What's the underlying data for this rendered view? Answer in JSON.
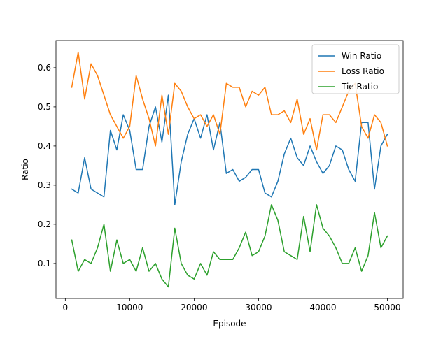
{
  "chart_data": {
    "type": "line",
    "title": "",
    "xlabel": "Episode",
    "ylabel": "Ratio",
    "xlim": [
      -1450,
      52450
    ],
    "ylim": [
      0.0105,
      0.6695
    ],
    "xticks": [
      0,
      10000,
      20000,
      30000,
      40000,
      50000
    ],
    "yticks": [
      0.1,
      0.2,
      0.3,
      0.4,
      0.5,
      0.6
    ],
    "xtick_labels": [
      "0",
      "10000",
      "20000",
      "30000",
      "40000",
      "50000"
    ],
    "ytick_labels": [
      "0.1",
      "0.2",
      "0.3",
      "0.4",
      "0.5",
      "0.6"
    ],
    "grid": false,
    "legend_position": "top-right",
    "x": [
      1000,
      2000,
      3000,
      4000,
      5000,
      6000,
      7000,
      8000,
      9000,
      10000,
      11000,
      12000,
      13000,
      14000,
      15000,
      16000,
      17000,
      18000,
      19000,
      20000,
      21000,
      22000,
      23000,
      24000,
      25000,
      26000,
      27000,
      28000,
      29000,
      30000,
      31000,
      32000,
      33000,
      34000,
      35000,
      36000,
      37000,
      38000,
      39000,
      40000,
      41000,
      42000,
      43000,
      44000,
      45000,
      46000,
      47000,
      48000,
      49000,
      50000
    ],
    "series": [
      {
        "name": "Win Ratio",
        "color": "#1f77b4",
        "values": [
          0.29,
          0.28,
          0.37,
          0.29,
          0.28,
          0.27,
          0.44,
          0.39,
          0.48,
          0.44,
          0.34,
          0.34,
          0.45,
          0.5,
          0.41,
          0.53,
          0.25,
          0.36,
          0.43,
          0.47,
          0.42,
          0.48,
          0.39,
          0.46,
          0.33,
          0.34,
          0.31,
          0.32,
          0.34,
          0.34,
          0.28,
          0.27,
          0.31,
          0.38,
          0.42,
          0.37,
          0.35,
          0.4,
          0.36,
          0.33,
          0.35,
          0.4,
          0.39,
          0.34,
          0.31,
          0.46,
          0.46,
          0.29,
          0.4,
          0.43
        ]
      },
      {
        "name": "Loss Ratio",
        "color": "#ff7f0e",
        "values": [
          0.55,
          0.64,
          0.52,
          0.61,
          0.58,
          0.53,
          0.48,
          0.45,
          0.42,
          0.45,
          0.58,
          0.52,
          0.47,
          0.4,
          0.53,
          0.43,
          0.56,
          0.54,
          0.5,
          0.47,
          0.48,
          0.45,
          0.48,
          0.43,
          0.56,
          0.55,
          0.55,
          0.5,
          0.54,
          0.53,
          0.55,
          0.48,
          0.48,
          0.49,
          0.46,
          0.52,
          0.43,
          0.47,
          0.39,
          0.48,
          0.48,
          0.46,
          0.5,
          0.54,
          0.56,
          0.45,
          0.42,
          0.48,
          0.46,
          0.4
        ]
      },
      {
        "name": "Tie Ratio",
        "color": "#2ca02c",
        "values": [
          0.16,
          0.08,
          0.11,
          0.1,
          0.14,
          0.2,
          0.08,
          0.16,
          0.1,
          0.11,
          0.08,
          0.14,
          0.08,
          0.1,
          0.06,
          0.04,
          0.19,
          0.1,
          0.07,
          0.06,
          0.1,
          0.07,
          0.13,
          0.11,
          0.11,
          0.11,
          0.14,
          0.18,
          0.12,
          0.13,
          0.17,
          0.25,
          0.21,
          0.13,
          0.12,
          0.11,
          0.22,
          0.13,
          0.25,
          0.19,
          0.17,
          0.14,
          0.1,
          0.1,
          0.14,
          0.08,
          0.12,
          0.23,
          0.14,
          0.17
        ]
      }
    ]
  }
}
